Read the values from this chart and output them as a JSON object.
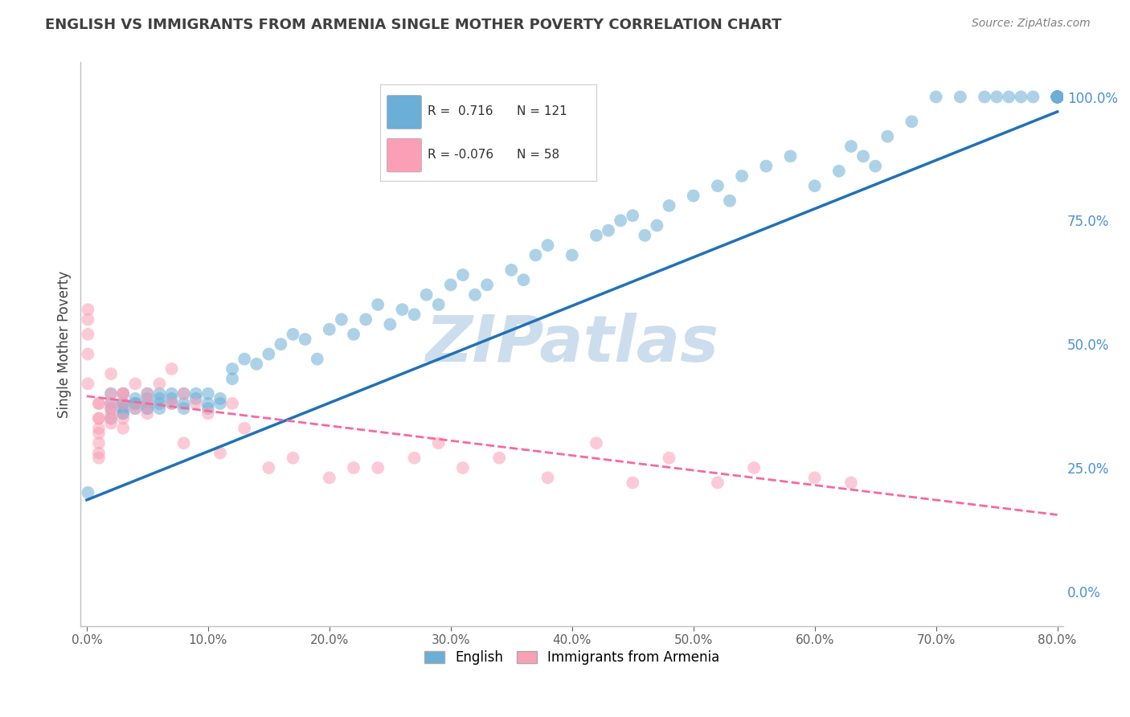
{
  "title": "ENGLISH VS IMMIGRANTS FROM ARMENIA SINGLE MOTHER POVERTY CORRELATION CHART",
  "source": "Source: ZipAtlas.com",
  "ylabel": "Single Mother Poverty",
  "watermark": "ZIPatlas",
  "legend": {
    "blue_R": "0.716",
    "blue_N": "121",
    "pink_R": "-0.076",
    "pink_N": "58"
  },
  "right_yticks": [
    0.0,
    0.25,
    0.5,
    0.75,
    1.0
  ],
  "right_yticklabels": [
    "0.0%",
    "25.0%",
    "50.0%",
    "75.0%",
    "100.0%"
  ],
  "blue_color": "#6baed6",
  "pink_color": "#fa9fb5",
  "blue_line_color": "#2171b5",
  "pink_line_color": "#f768a1",
  "title_color": "#404040",
  "source_color": "#808080",
  "watermark_color": "#ccdded",
  "grid_color": "#d0d8e0",
  "right_label_color": "#4a90d9",
  "blue_scatter_x": [
    0.001,
    0.02,
    0.02,
    0.02,
    0.02,
    0.03,
    0.03,
    0.03,
    0.03,
    0.03,
    0.03,
    0.04,
    0.04,
    0.04,
    0.04,
    0.05,
    0.05,
    0.05,
    0.05,
    0.05,
    0.06,
    0.06,
    0.06,
    0.06,
    0.07,
    0.07,
    0.07,
    0.08,
    0.08,
    0.08,
    0.09,
    0.09,
    0.1,
    0.1,
    0.1,
    0.11,
    0.11,
    0.12,
    0.12,
    0.13,
    0.14,
    0.15,
    0.16,
    0.17,
    0.18,
    0.19,
    0.2,
    0.21,
    0.22,
    0.23,
    0.24,
    0.25,
    0.26,
    0.27,
    0.28,
    0.29,
    0.3,
    0.31,
    0.32,
    0.33,
    0.35,
    0.36,
    0.37,
    0.38,
    0.4,
    0.42,
    0.43,
    0.44,
    0.45,
    0.46,
    0.47,
    0.48,
    0.5,
    0.52,
    0.53,
    0.54,
    0.56,
    0.58,
    0.6,
    0.62,
    0.63,
    0.64,
    0.65,
    0.66,
    0.68,
    0.7,
    0.72,
    0.74,
    0.75,
    0.76,
    0.77,
    0.78,
    0.8,
    0.8,
    0.8,
    0.8,
    0.8,
    0.8,
    0.8,
    0.8,
    0.8,
    0.8,
    0.8,
    0.8,
    0.8,
    0.8,
    0.8,
    0.8,
    0.8,
    0.8,
    0.8,
    0.8,
    0.8,
    0.8,
    0.8,
    0.8,
    0.8,
    0.8
  ],
  "blue_scatter_y": [
    0.2,
    0.38,
    0.4,
    0.35,
    0.37,
    0.38,
    0.36,
    0.4,
    0.38,
    0.37,
    0.36,
    0.38,
    0.38,
    0.37,
    0.39,
    0.37,
    0.38,
    0.39,
    0.37,
    0.4,
    0.38,
    0.39,
    0.37,
    0.4,
    0.38,
    0.4,
    0.39,
    0.38,
    0.4,
    0.37,
    0.4,
    0.39,
    0.37,
    0.38,
    0.4,
    0.39,
    0.38,
    0.45,
    0.43,
    0.47,
    0.46,
    0.48,
    0.5,
    0.52,
    0.51,
    0.47,
    0.53,
    0.55,
    0.52,
    0.55,
    0.58,
    0.54,
    0.57,
    0.56,
    0.6,
    0.58,
    0.62,
    0.64,
    0.6,
    0.62,
    0.65,
    0.63,
    0.68,
    0.7,
    0.68,
    0.72,
    0.73,
    0.75,
    0.76,
    0.72,
    0.74,
    0.78,
    0.8,
    0.82,
    0.79,
    0.84,
    0.86,
    0.88,
    0.82,
    0.85,
    0.9,
    0.88,
    0.86,
    0.92,
    0.95,
    1.0,
    1.0,
    1.0,
    1.0,
    1.0,
    1.0,
    1.0,
    1.0,
    1.0,
    1.0,
    1.0,
    1.0,
    1.0,
    1.0,
    1.0,
    1.0,
    1.0,
    1.0,
    1.0,
    1.0,
    1.0,
    1.0,
    1.0,
    1.0,
    1.0,
    1.0,
    1.0,
    1.0,
    1.0,
    1.0,
    1.0,
    1.0,
    1.0
  ],
  "pink_scatter_x": [
    0.001,
    0.001,
    0.001,
    0.001,
    0.001,
    0.01,
    0.01,
    0.01,
    0.01,
    0.01,
    0.01,
    0.01,
    0.01,
    0.01,
    0.02,
    0.02,
    0.02,
    0.02,
    0.02,
    0.02,
    0.02,
    0.03,
    0.03,
    0.03,
    0.03,
    0.03,
    0.04,
    0.04,
    0.05,
    0.05,
    0.05,
    0.06,
    0.07,
    0.07,
    0.08,
    0.08,
    0.09,
    0.1,
    0.11,
    0.12,
    0.13,
    0.15,
    0.17,
    0.2,
    0.22,
    0.24,
    0.27,
    0.29,
    0.31,
    0.34,
    0.38,
    0.42,
    0.45,
    0.48,
    0.52,
    0.55,
    0.6,
    0.63
  ],
  "pink_scatter_y": [
    0.57,
    0.55,
    0.48,
    0.52,
    0.42,
    0.38,
    0.38,
    0.35,
    0.33,
    0.3,
    0.28,
    0.27,
    0.32,
    0.35,
    0.38,
    0.34,
    0.36,
    0.4,
    0.37,
    0.35,
    0.44,
    0.38,
    0.4,
    0.35,
    0.33,
    0.4,
    0.37,
    0.42,
    0.38,
    0.36,
    0.4,
    0.42,
    0.38,
    0.45,
    0.4,
    0.3,
    0.38,
    0.36,
    0.28,
    0.38,
    0.33,
    0.25,
    0.27,
    0.23,
    0.25,
    0.25,
    0.27,
    0.3,
    0.25,
    0.27,
    0.23,
    0.3,
    0.22,
    0.27,
    0.22,
    0.25,
    0.23,
    0.22
  ],
  "blue_line_x": [
    0.0,
    0.8
  ],
  "blue_line_y": [
    0.185,
    0.97
  ],
  "pink_line_x": [
    0.0,
    0.8
  ],
  "pink_line_y": [
    0.395,
    0.155
  ],
  "xlim": [
    -0.005,
    0.805
  ],
  "ylim": [
    -0.07,
    1.07
  ],
  "background_color": "#ffffff"
}
